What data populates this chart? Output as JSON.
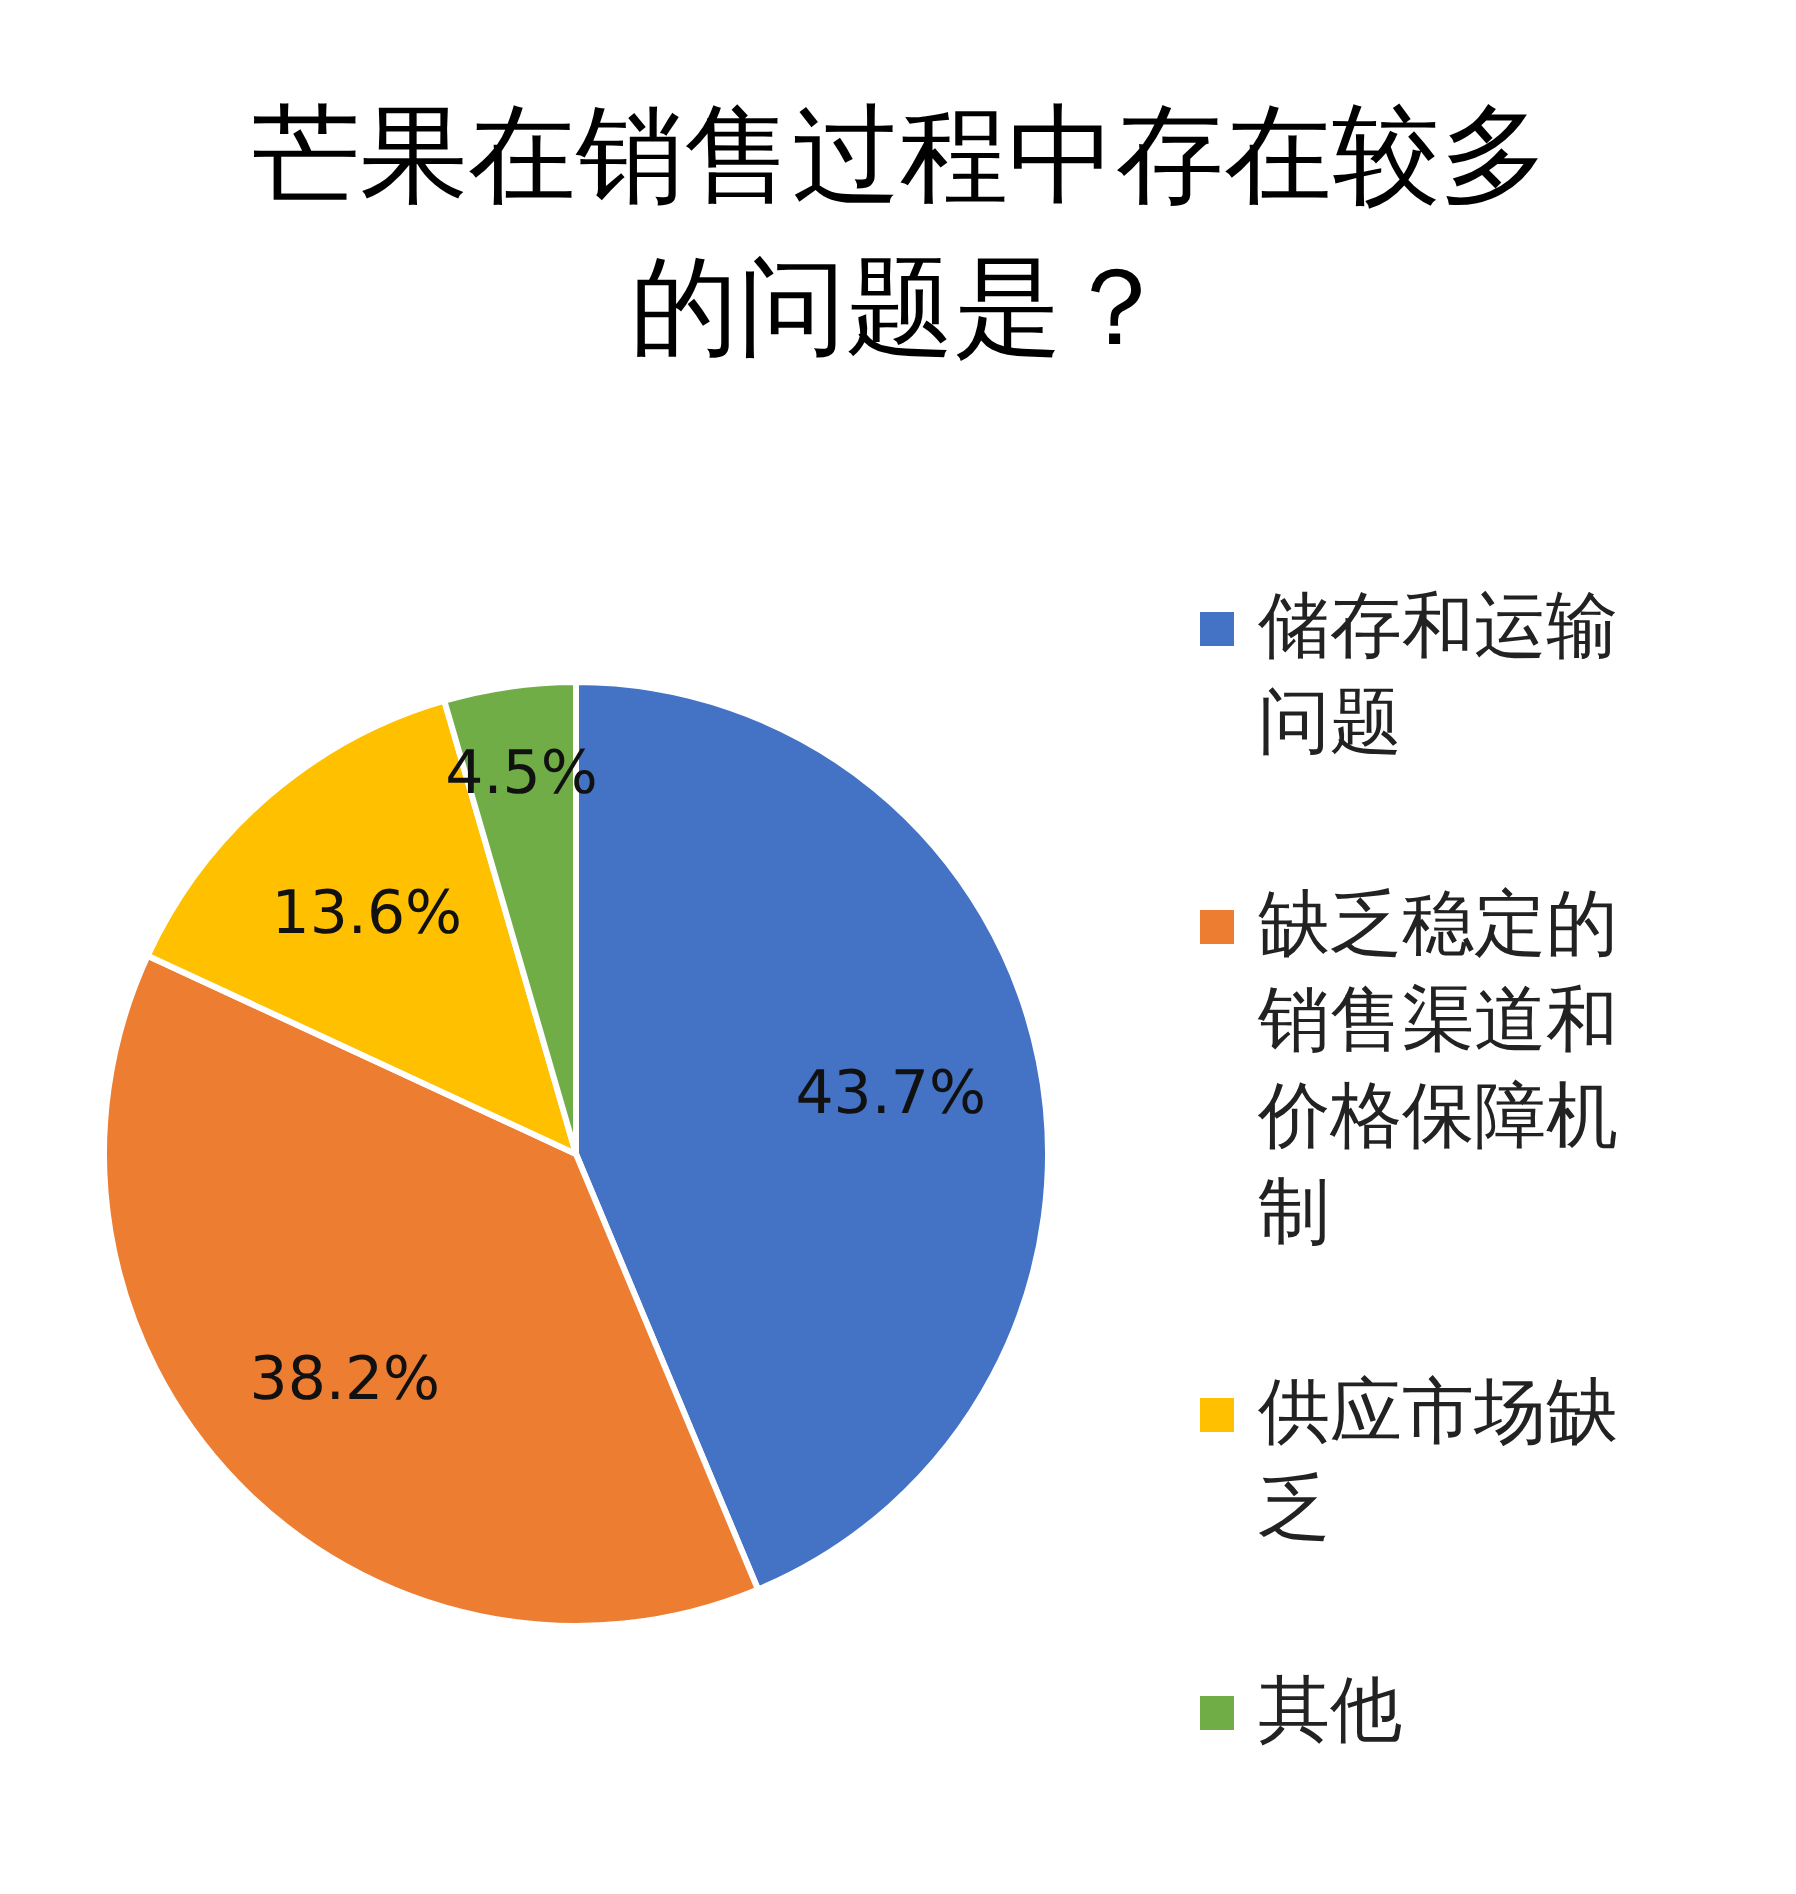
{
  "chart_data": {
    "type": "pie",
    "title": "芒果在销售过程中存在较多的问题是？",
    "categories": [
      "储存和运输问题",
      "缺乏稳定的销售渠道和价格保障机制",
      "供应市场缺乏",
      "其他"
    ],
    "values": [
      43.7,
      38.2,
      13.6,
      4.5
    ],
    "value_labels": [
      "43.7%",
      "38.2%",
      "13.6%",
      "4.5%"
    ],
    "colors": [
      "#4472c4",
      "#ed7d31",
      "#ffc000",
      "#70ad47"
    ],
    "legend": "right"
  }
}
